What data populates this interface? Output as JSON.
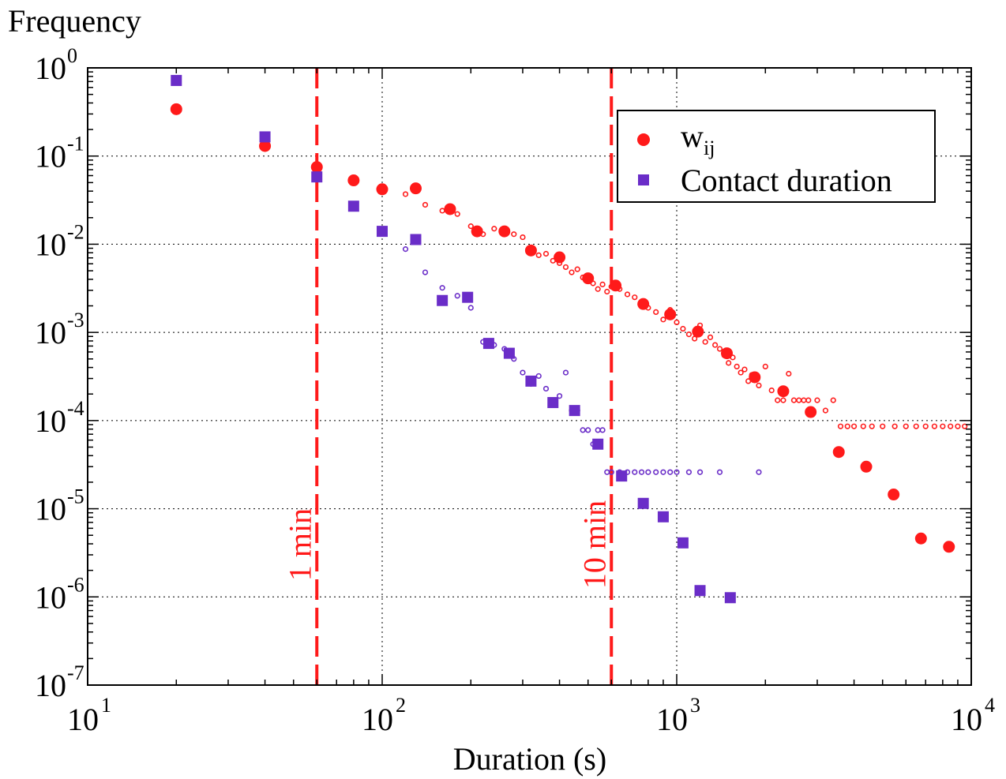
{
  "chart_data": {
    "type": "scatter",
    "title": "",
    "ylabel": "Frequency",
    "xlabel": "Duration (s)",
    "xscale": "log",
    "yscale": "log",
    "xlim": [
      10,
      10000
    ],
    "ylim": [
      1e-07,
      1
    ],
    "grid": true,
    "legend_position": "top-right",
    "x_ticks": [
      {
        "value": 10,
        "base": "10",
        "exp": "1"
      },
      {
        "value": 100,
        "base": "10",
        "exp": "2"
      },
      {
        "value": 1000,
        "base": "10",
        "exp": "3"
      },
      {
        "value": 10000,
        "base": "10",
        "exp": "4"
      }
    ],
    "y_ticks": [
      {
        "value": 1,
        "base": "10",
        "exp": "0"
      },
      {
        "value": 0.1,
        "base": "10",
        "exp": "-1"
      },
      {
        "value": 0.01,
        "base": "10",
        "exp": "-2"
      },
      {
        "value": 0.001,
        "base": "10",
        "exp": "-3"
      },
      {
        "value": 0.0001,
        "base": "10",
        "exp": "-4"
      },
      {
        "value": 1e-05,
        "base": "10",
        "exp": "-5"
      },
      {
        "value": 1e-06,
        "base": "10",
        "exp": "-6"
      },
      {
        "value": 1e-07,
        "base": "10",
        "exp": "-7"
      }
    ],
    "reference_lines": [
      {
        "x": 60,
        "label": "1 min",
        "color": "#ff1a1a"
      },
      {
        "x": 600,
        "label": "10 min",
        "color": "#ff1a1a"
      }
    ],
    "series": [
      {
        "name": "w",
        "name_sub": "ij",
        "marker": "circle",
        "color": "#ff1a1a",
        "points": [
          [
            20,
            0.34
          ],
          [
            40,
            0.13
          ],
          [
            60,
            0.075
          ],
          [
            80,
            0.053
          ],
          [
            100,
            0.042
          ],
          [
            130,
            0.043
          ],
          [
            170,
            0.025
          ],
          [
            210,
            0.014
          ],
          [
            260,
            0.014
          ],
          [
            320,
            0.0085
          ],
          [
            400,
            0.0071
          ],
          [
            500,
            0.0041
          ],
          [
            620,
            0.0034
          ],
          [
            770,
            0.0021
          ],
          [
            950,
            0.0016
          ],
          [
            1180,
            0.00102
          ],
          [
            1480,
            0.00058
          ],
          [
            1840,
            0.00031
          ],
          [
            2300,
            0.000215
          ],
          [
            2850,
            0.000125
          ],
          [
            3550,
            4.4e-05
          ],
          [
            4400,
            3e-05
          ],
          [
            5450,
            1.45e-05
          ],
          [
            6750,
            4.6e-06
          ],
          [
            8400,
            3.7e-06
          ]
        ],
        "raw_points": [
          [
            20,
            0.34
          ],
          [
            40,
            0.13
          ],
          [
            60,
            0.075
          ],
          [
            80,
            0.053
          ],
          [
            100,
            0.042
          ],
          [
            120,
            0.037
          ],
          [
            140,
            0.028
          ],
          [
            160,
            0.024
          ],
          [
            180,
            0.022
          ],
          [
            200,
            0.016
          ],
          [
            220,
            0.013
          ],
          [
            240,
            0.015
          ],
          [
            260,
            0.014
          ],
          [
            280,
            0.013
          ],
          [
            300,
            0.012
          ],
          [
            320,
            0.0085
          ],
          [
            340,
            0.0075
          ],
          [
            360,
            0.0078
          ],
          [
            380,
            0.0065
          ],
          [
            400,
            0.0061
          ],
          [
            420,
            0.0055
          ],
          [
            440,
            0.0048
          ],
          [
            460,
            0.0052
          ],
          [
            480,
            0.0042
          ],
          [
            500,
            0.0038
          ],
          [
            520,
            0.0036
          ],
          [
            540,
            0.0031
          ],
          [
            560,
            0.0035
          ],
          [
            580,
            0.0029
          ],
          [
            600,
            0.0033
          ],
          [
            640,
            0.0031
          ],
          [
            680,
            0.0027
          ],
          [
            720,
            0.0025
          ],
          [
            760,
            0.0021
          ],
          [
            800,
            0.0019
          ],
          [
            850,
            0.0017
          ],
          [
            900,
            0.0014
          ],
          [
            950,
            0.0018
          ],
          [
            1000,
            0.0013
          ],
          [
            1050,
            0.0011
          ],
          [
            1100,
            0.00095
          ],
          [
            1150,
            0.00085
          ],
          [
            1200,
            0.0012
          ],
          [
            1250,
            0.00078
          ],
          [
            1300,
            0.00088
          ],
          [
            1350,
            0.00072
          ],
          [
            1400,
            0.00065
          ],
          [
            1450,
            0.00055
          ],
          [
            1500,
            0.00045
          ],
          [
            1550,
            0.00052
          ],
          [
            1600,
            0.00041
          ],
          [
            1650,
            0.00035
          ],
          [
            1700,
            0.00038
          ],
          [
            1750,
            0.00028
          ],
          [
            1800,
            0.00033
          ],
          [
            1900,
            0.00025
          ],
          [
            2000,
            0.00041
          ],
          [
            2100,
            0.00022
          ],
          [
            2200,
            0.00017
          ],
          [
            2300,
            0.00017
          ],
          [
            2400,
            0.00034
          ],
          [
            2500,
            0.00017
          ],
          [
            2600,
            0.00017
          ],
          [
            2700,
            0.00017
          ],
          [
            2800,
            0.00017
          ],
          [
            2900,
            0.00013
          ],
          [
            3000,
            0.00017
          ],
          [
            3200,
            0.00013
          ],
          [
            3400,
            0.00017
          ],
          [
            3600,
            8.6e-05
          ],
          [
            3800,
            8.6e-05
          ],
          [
            4000,
            8.6e-05
          ],
          [
            4300,
            8.6e-05
          ],
          [
            4600,
            8.6e-05
          ],
          [
            5000,
            8.6e-05
          ],
          [
            5500,
            8.6e-05
          ],
          [
            6000,
            8.6e-05
          ],
          [
            6500,
            8.6e-05
          ],
          [
            7000,
            8.6e-05
          ],
          [
            7500,
            8.6e-05
          ],
          [
            8000,
            8.6e-05
          ],
          [
            8500,
            8.6e-05
          ],
          [
            9000,
            8.6e-05
          ],
          [
            9500,
            8.6e-05
          ]
        ]
      },
      {
        "name": "Contact duration",
        "marker": "square",
        "color": "#6a2dc8",
        "points": [
          [
            20,
            0.72
          ],
          [
            40,
            0.165
          ],
          [
            60,
            0.058
          ],
          [
            80,
            0.027
          ],
          [
            100,
            0.014
          ],
          [
            130,
            0.0113
          ],
          [
            160,
            0.0023
          ],
          [
            195,
            0.0025
          ],
          [
            230,
            0.00075
          ],
          [
            270,
            0.00058
          ],
          [
            320,
            0.00028
          ],
          [
            380,
            0.00016
          ],
          [
            450,
            0.00013
          ],
          [
            540,
            5.4e-05
          ],
          [
            650,
            2.35e-05
          ],
          [
            770,
            1.15e-05
          ],
          [
            900,
            8.1e-06
          ],
          [
            1050,
            4.1e-06
          ],
          [
            1200,
            1.18e-06
          ],
          [
            1520,
            9.8e-07
          ]
        ],
        "raw_points": [
          [
            20,
            0.72
          ],
          [
            40,
            0.165
          ],
          [
            60,
            0.058
          ],
          [
            80,
            0.027
          ],
          [
            100,
            0.014
          ],
          [
            120,
            0.0088
          ],
          [
            140,
            0.0048
          ],
          [
            160,
            0.0032
          ],
          [
            180,
            0.0026
          ],
          [
            200,
            0.0019
          ],
          [
            220,
            0.00078
          ],
          [
            240,
            0.00072
          ],
          [
            260,
            0.00065
          ],
          [
            280,
            0.0005
          ],
          [
            300,
            0.00035
          ],
          [
            320,
            0.00026
          ],
          [
            340,
            0.00032
          ],
          [
            360,
            0.00023
          ],
          [
            380,
            0.00016
          ],
          [
            400,
            0.00019
          ],
          [
            420,
            0.00035
          ],
          [
            440,
            0.00013
          ],
          [
            460,
            0.00013
          ],
          [
            480,
            7.8e-05
          ],
          [
            500,
            7.8e-05
          ],
          [
            520,
            5.4e-05
          ],
          [
            540,
            7.8e-05
          ],
          [
            560,
            7.8e-05
          ],
          [
            580,
            2.6e-05
          ],
          [
            600,
            2.6e-05
          ],
          [
            640,
            2.6e-05
          ],
          [
            680,
            2.6e-05
          ],
          [
            720,
            2.6e-05
          ],
          [
            760,
            2.6e-05
          ],
          [
            800,
            2.6e-05
          ],
          [
            850,
            2.6e-05
          ],
          [
            900,
            2.6e-05
          ],
          [
            950,
            2.6e-05
          ],
          [
            1000,
            2.6e-05
          ],
          [
            1100,
            2.6e-05
          ],
          [
            1200,
            2.6e-05
          ],
          [
            1400,
            2.6e-05
          ],
          [
            1900,
            2.6e-05
          ]
        ]
      }
    ]
  }
}
